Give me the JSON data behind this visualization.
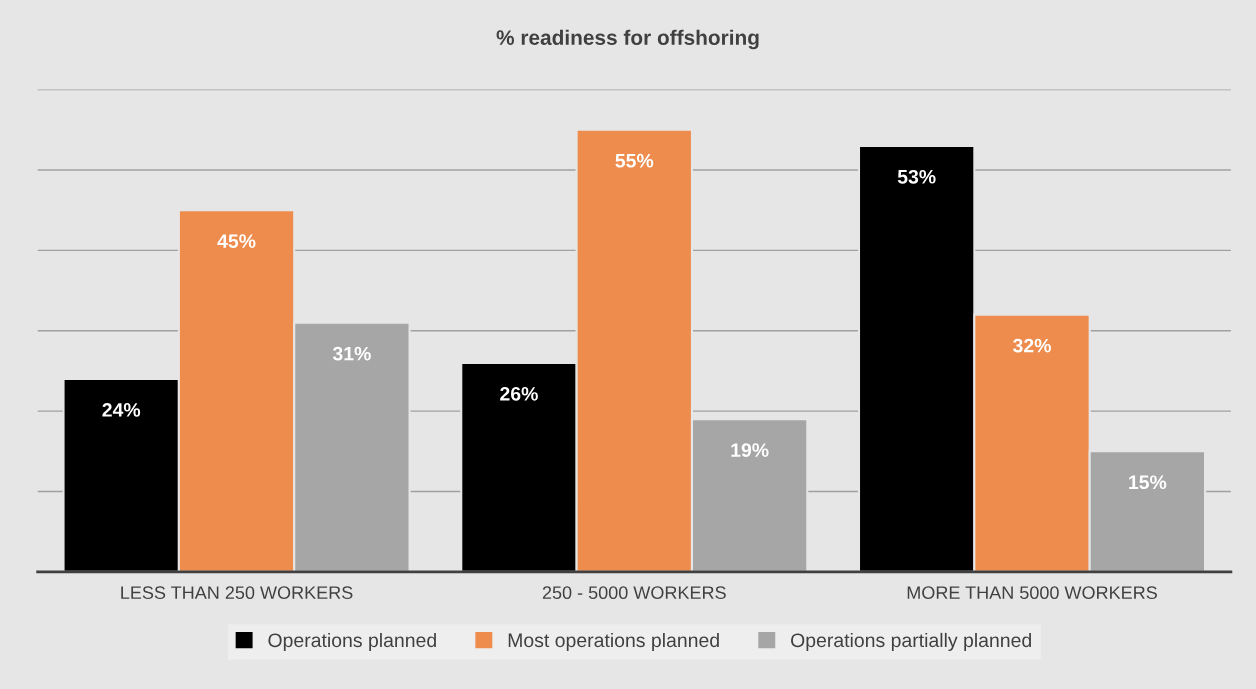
{
  "chart_data": {
    "type": "bar",
    "title": "% readiness for offshoring",
    "categories": [
      "LESS THAN 250 WORKERS",
      "250 - 5000 WORKERS",
      "MORE THAN 5000 WORKERS"
    ],
    "series": [
      {
        "name": "Operations planned",
        "color": "#000000",
        "values": [
          24,
          26,
          53
        ],
        "value_labels": [
          "24%",
          "26%",
          "53%"
        ]
      },
      {
        "name": "Most operations planned",
        "color": "#ed8c4d",
        "values": [
          45,
          55,
          32
        ],
        "value_labels": [
          "45%",
          "55%",
          "32%"
        ]
      },
      {
        "name": "Operations partially planned",
        "color": "#a6a6a6",
        "values": [
          31,
          19,
          15
        ],
        "value_labels": [
          "31%",
          "19%",
          "15%"
        ]
      }
    ],
    "ylim": [
      0,
      60
    ],
    "yticks": [
      {
        "value": 0,
        "label": null
      },
      {
        "value": 10,
        "label": null
      },
      {
        "value": 20,
        "label": null
      },
      {
        "value": 30,
        "label": null
      },
      {
        "value": 40,
        "label": null
      },
      {
        "value": 50,
        "label": null
      },
      {
        "value": 60,
        "label": null
      }
    ],
    "grid": "y",
    "legend": "bottom",
    "tick_labels": "x"
  }
}
